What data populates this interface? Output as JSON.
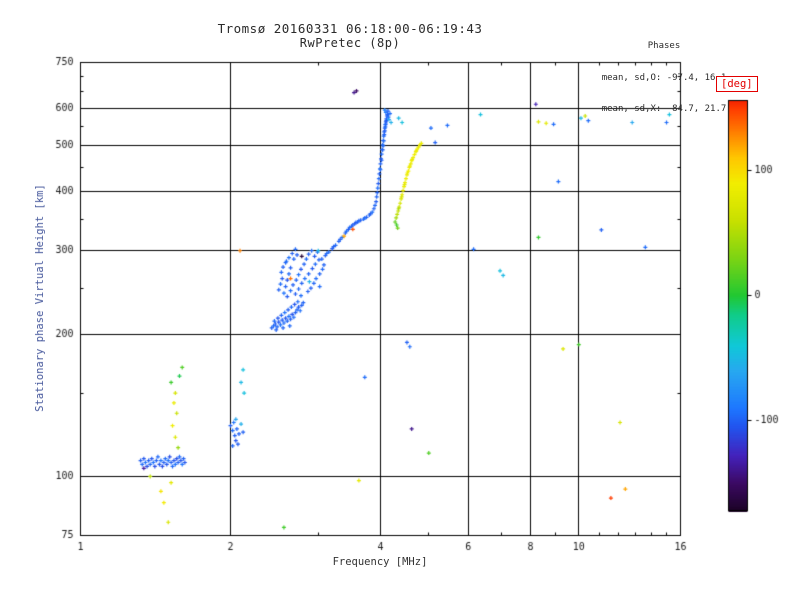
{
  "title": {
    "line1": "Tromsø 20160331 06:18:00-06:19:43",
    "line2": "RwPretec (8p)"
  },
  "stats": {
    "header": "Phases",
    "line_o": "mean, sd,O: -97.4, 16.1",
    "line_x": "mean, sd,X:  84.7, 21.7"
  },
  "axes": {
    "x": {
      "label": "Frequency [MHz]",
      "scale": "log",
      "min": 1,
      "max": 16,
      "major_ticks": [
        1,
        2,
        4,
        6,
        8,
        10,
        16
      ],
      "grid_ticks": [
        2,
        4,
        6,
        8,
        10
      ],
      "minor_ticks": [
        3,
        5,
        7,
        9,
        11,
        12,
        13,
        14,
        15
      ]
    },
    "y": {
      "label": "Stationary phase Virtual Height [km]",
      "scale": "log",
      "min": 75,
      "max": 750,
      "major_ticks": [
        75,
        100,
        200,
        300,
        400,
        500,
        600,
        750
      ],
      "grid_ticks": [
        100,
        200,
        300,
        400,
        500,
        600
      ],
      "minor_ticks": [
        150,
        250,
        350,
        450,
        550,
        650,
        700
      ]
    }
  },
  "colorbar": {
    "label": "[deg]",
    "ticks": [
      100,
      0,
      -100
    ],
    "vmin": -172,
    "vmax": 156,
    "stops": [
      [
        -180,
        "#100010"
      ],
      [
        -150,
        "#3c0a64"
      ],
      [
        -128,
        "#4422bb"
      ],
      [
        -105,
        "#2255ee"
      ],
      [
        -90,
        "#1e78ff"
      ],
      [
        -60,
        "#28a8f0"
      ],
      [
        -40,
        "#10c8d8"
      ],
      [
        -15,
        "#10cc88"
      ],
      [
        0,
        "#22c833"
      ],
      [
        30,
        "#7dd414"
      ],
      [
        60,
        "#c8e000"
      ],
      [
        90,
        "#f2ee00"
      ],
      [
        110,
        "#ffc800"
      ],
      [
        130,
        "#ff8200"
      ],
      [
        150,
        "#ff3c00"
      ],
      [
        165,
        "#e60000"
      ],
      [
        180,
        "#d40000"
      ]
    ]
  },
  "chart_data": {
    "type": "scatter",
    "title": "Tromsø 20160331 06:18:00-06:19:43 RwPretec (8p)",
    "xlabel": "Frequency [MHz]",
    "ylabel": "Stationary phase Virtual Height [km]",
    "xscale": "log",
    "yscale": "log",
    "xlim": [
      1,
      16
    ],
    "ylim": [
      75,
      750
    ],
    "grid": true,
    "color_variable": "phase [deg]",
    "point_format": [
      "frequency_MHz",
      "virtual_height_km",
      "phase_deg"
    ],
    "points": [
      [
        1.32,
        108,
        -100
      ],
      [
        1.33,
        106,
        -96
      ],
      [
        1.34,
        109,
        -104
      ],
      [
        1.35,
        107,
        -92
      ],
      [
        1.36,
        105,
        -108
      ],
      [
        1.37,
        108,
        -100
      ],
      [
        1.38,
        106,
        -96
      ],
      [
        1.39,
        109,
        -104
      ],
      [
        1.4,
        107,
        -92
      ],
      [
        1.41,
        105,
        -108
      ],
      [
        1.42,
        108,
        -100
      ],
      [
        1.43,
        110,
        -96
      ],
      [
        1.44,
        106,
        -104
      ],
      [
        1.45,
        108,
        -92
      ],
      [
        1.46,
        105,
        -108
      ],
      [
        1.47,
        107,
        -100
      ],
      [
        1.48,
        109,
        -96
      ],
      [
        1.49,
        106,
        -104
      ],
      [
        1.5,
        108,
        -92
      ],
      [
        1.51,
        110,
        -108
      ],
      [
        1.52,
        107,
        -100
      ],
      [
        1.53,
        105,
        -96
      ],
      [
        1.54,
        108,
        -104
      ],
      [
        1.55,
        106,
        -92
      ],
      [
        1.56,
        109,
        -108
      ],
      [
        1.57,
        107,
        -100
      ],
      [
        1.58,
        110,
        -96
      ],
      [
        1.59,
        108,
        -104
      ],
      [
        1.6,
        106,
        -92
      ],
      [
        1.61,
        109,
        -100
      ],
      [
        1.62,
        107,
        -104
      ],
      [
        1.34,
        104,
        -135
      ],
      [
        1.38,
        100,
        55
      ],
      [
        1.52,
        97,
        80
      ],
      [
        1.47,
        88,
        92
      ],
      [
        1.5,
        80,
        72
      ],
      [
        1.55,
        150,
        70
      ],
      [
        1.54,
        143,
        85
      ],
      [
        1.56,
        136,
        60
      ],
      [
        1.53,
        128,
        88
      ],
      [
        1.55,
        121,
        75
      ],
      [
        1.57,
        115,
        40
      ],
      [
        1.52,
        158,
        8
      ],
      [
        1.58,
        163,
        -5
      ],
      [
        1.45,
        93,
        95
      ],
      [
        1.6,
        170,
        15
      ],
      [
        2.0,
        128,
        -100
      ],
      [
        2.02,
        125,
        -95
      ],
      [
        2.04,
        122,
        -100
      ],
      [
        2.05,
        119,
        -105
      ],
      [
        2.06,
        126,
        -98
      ],
      [
        2.08,
        123,
        -100
      ],
      [
        2.03,
        130,
        -92
      ],
      [
        2.07,
        117,
        -102
      ],
      [
        2.05,
        132,
        -60
      ],
      [
        2.1,
        129,
        -55
      ],
      [
        2.12,
        124,
        -100
      ],
      [
        2.02,
        116,
        -98
      ],
      [
        2.1,
        158,
        -50
      ],
      [
        2.13,
        150,
        -45
      ],
      [
        2.12,
        168,
        -45
      ],
      [
        2.09,
        300,
        130
      ],
      [
        2.42,
        206,
        -100
      ],
      [
        2.44,
        208,
        -95
      ],
      [
        2.46,
        210,
        -102
      ],
      [
        2.48,
        207,
        -97
      ],
      [
        2.5,
        212,
        -105
      ],
      [
        2.52,
        209,
        -93
      ],
      [
        2.54,
        214,
        -100
      ],
      [
        2.56,
        211,
        -96
      ],
      [
        2.58,
        216,
        -104
      ],
      [
        2.6,
        213,
        -98
      ],
      [
        2.62,
        218,
        -92
      ],
      [
        2.64,
        215,
        -100
      ],
      [
        2.66,
        220,
        -106
      ],
      [
        2.68,
        217,
        -95
      ],
      [
        2.7,
        222,
        -100
      ],
      [
        2.72,
        225,
        -97
      ],
      [
        2.74,
        228,
        -103
      ],
      [
        2.76,
        224,
        -94
      ],
      [
        2.78,
        230,
        -100
      ],
      [
        2.8,
        233,
        -98
      ],
      [
        2.45,
        213,
        -96
      ],
      [
        2.49,
        216,
        -104
      ],
      [
        2.53,
        219,
        -99
      ],
      [
        2.57,
        222,
        -93
      ],
      [
        2.61,
        225,
        -101
      ],
      [
        2.65,
        228,
        -97
      ],
      [
        2.69,
        231,
        -105
      ],
      [
        2.73,
        234,
        -95
      ],
      [
        2.47,
        204,
        -100
      ],
      [
        2.55,
        206,
        -98
      ],
      [
        2.63,
        208,
        -96
      ],
      [
        2.5,
        248,
        -100
      ],
      [
        2.52,
        255,
        -95
      ],
      [
        2.54,
        262,
        -103
      ],
      [
        2.53,
        270,
        -97
      ],
      [
        2.56,
        244,
        -92
      ],
      [
        2.58,
        252,
        -100
      ],
      [
        2.6,
        260,
        -105
      ],
      [
        2.62,
        268,
        -96
      ],
      [
        2.64,
        276,
        -101
      ],
      [
        2.58,
        283,
        -98
      ],
      [
        2.62,
        290,
        -94
      ],
      [
        2.66,
        296,
        -100
      ],
      [
        2.7,
        302,
        -97
      ],
      [
        2.6,
        240,
        -103
      ],
      [
        2.64,
        247,
        -95
      ],
      [
        2.67,
        254,
        -100
      ],
      [
        2.71,
        260,
        -98
      ],
      [
        2.74,
        267,
        -92
      ],
      [
        2.77,
        274,
        -104
      ],
      [
        2.81,
        281,
        -99
      ],
      [
        2.84,
        288,
        -96
      ],
      [
        2.87,
        295,
        -100
      ],
      [
        2.91,
        300,
        -95
      ],
      [
        2.7,
        243,
        -102
      ],
      [
        2.74,
        249,
        -97
      ],
      [
        2.78,
        256,
        -100
      ],
      [
        2.82,
        262,
        -94
      ],
      [
        2.87,
        268,
        -98
      ],
      [
        2.92,
        275,
        -103
      ],
      [
        2.96,
        281,
        -96
      ],
      [
        3.01,
        287,
        -100
      ],
      [
        2.97,
        262,
        -95
      ],
      [
        3.02,
        268,
        -99
      ],
      [
        3.06,
        274,
        -97
      ],
      [
        2.9,
        250,
        -101
      ],
      [
        2.94,
        256,
        -98
      ],
      [
        2.77,
        241,
        -95
      ],
      [
        2.86,
        246,
        -100
      ],
      [
        3.02,
        252,
        -96
      ],
      [
        3.08,
        280,
        -99
      ],
      [
        2.95,
        292,
        -103
      ],
      [
        2.99,
        298,
        -97
      ],
      [
        2.55,
        277,
        -100
      ],
      [
        2.59,
        285,
        -95
      ],
      [
        2.68,
        288,
        -98
      ],
      [
        2.72,
        294,
        -101
      ],
      [
        2.64,
        262,
        135
      ],
      [
        2.78,
        292,
        -165
      ],
      [
        2.88,
        258,
        -55
      ],
      [
        3.0,
        300,
        -50
      ],
      [
        3.05,
        288,
        -98
      ],
      [
        3.1,
        293,
        -100
      ],
      [
        3.15,
        298,
        -95
      ],
      [
        3.2,
        303,
        -102
      ],
      [
        3.25,
        308,
        -97
      ],
      [
        3.3,
        314,
        -100
      ],
      [
        3.35,
        320,
        -94
      ],
      [
        3.4,
        327,
        -99
      ],
      [
        3.45,
        333,
        -103
      ],
      [
        3.5,
        338,
        -96
      ],
      [
        3.55,
        342,
        -100
      ],
      [
        3.6,
        345,
        -97
      ],
      [
        3.65,
        348,
        -101
      ],
      [
        3.7,
        350,
        -95
      ],
      [
        3.75,
        353,
        -100
      ],
      [
        3.8,
        357,
        -98
      ],
      [
        3.85,
        362,
        -94
      ],
      [
        3.88,
        368,
        -100
      ],
      [
        3.9,
        374,
        -97
      ],
      [
        3.92,
        381,
        -102
      ],
      [
        3.12,
        296,
        -96
      ],
      [
        3.22,
        306,
        -100
      ],
      [
        3.32,
        317,
        -98
      ],
      [
        3.42,
        330,
        -95
      ],
      [
        3.52,
        340,
        -101
      ],
      [
        3.62,
        347,
        -99
      ],
      [
        3.72,
        352,
        -96
      ],
      [
        3.82,
        359,
        -100
      ],
      [
        3.47,
        336,
        -97
      ],
      [
        3.57,
        344,
        -103
      ],
      [
        3.52,
        333,
        145
      ],
      [
        3.38,
        322,
        120
      ],
      [
        3.93,
        390,
        -98
      ],
      [
        3.94,
        398,
        -100
      ],
      [
        3.95,
        407,
        -95
      ],
      [
        3.96,
        416,
        -102
      ],
      [
        3.97,
        426,
        -97
      ],
      [
        3.98,
        436,
        -100
      ],
      [
        3.99,
        447,
        -94
      ],
      [
        4.0,
        458,
        -99
      ],
      [
        4.01,
        469,
        -103
      ],
      [
        4.02,
        480,
        -96
      ],
      [
        4.03,
        491,
        -100
      ],
      [
        4.04,
        502,
        -97
      ],
      [
        4.05,
        513,
        -101
      ],
      [
        4.06,
        524,
        -95
      ],
      [
        4.07,
        535,
        -100
      ],
      [
        4.08,
        545,
        -98
      ],
      [
        4.09,
        554,
        -94
      ],
      [
        4.1,
        562,
        -100
      ],
      [
        4.11,
        570,
        -97
      ],
      [
        4.12,
        578,
        -102
      ],
      [
        4.0,
        445,
        -96
      ],
      [
        4.02,
        466,
        -100
      ],
      [
        4.04,
        490,
        -98
      ],
      [
        4.06,
        512,
        -95
      ],
      [
        4.08,
        538,
        -101
      ],
      [
        4.1,
        556,
        -99
      ],
      [
        4.05,
        500,
        -96
      ],
      [
        4.07,
        528,
        -100
      ],
      [
        4.09,
        548,
        -97
      ],
      [
        4.11,
        565,
        -103
      ],
      [
        4.1,
        588,
        -90
      ],
      [
        4.13,
        582,
        -100
      ],
      [
        4.15,
        575,
        -95
      ],
      [
        4.08,
        595,
        -85
      ],
      [
        4.14,
        592,
        -100
      ],
      [
        4.16,
        568,
        -60
      ],
      [
        4.2,
        560,
        -55
      ],
      [
        4.18,
        585,
        -95
      ],
      [
        3.54,
        648,
        -140
      ],
      [
        3.58,
        653,
        -150
      ],
      [
        4.3,
        352,
        45
      ],
      [
        4.32,
        358,
        55
      ],
      [
        4.34,
        364,
        60
      ],
      [
        4.36,
        371,
        65
      ],
      [
        4.38,
        378,
        70
      ],
      [
        4.4,
        386,
        75
      ],
      [
        4.42,
        394,
        80
      ],
      [
        4.44,
        402,
        82
      ],
      [
        4.46,
        410,
        85
      ],
      [
        4.48,
        418,
        85
      ],
      [
        4.5,
        426,
        88
      ],
      [
        4.52,
        434,
        85
      ],
      [
        4.55,
        442,
        90
      ],
      [
        4.57,
        450,
        88
      ],
      [
        4.6,
        458,
        85
      ],
      [
        4.62,
        465,
        90
      ],
      [
        4.65,
        472,
        85
      ],
      [
        4.68,
        479,
        88
      ],
      [
        4.71,
        486,
        85
      ],
      [
        4.74,
        492,
        90
      ],
      [
        4.77,
        497,
        85
      ],
      [
        4.8,
        502,
        88
      ],
      [
        4.83,
        506,
        85
      ],
      [
        4.47,
        414,
        80
      ],
      [
        4.53,
        438,
        86
      ],
      [
        4.63,
        468,
        84
      ],
      [
        4.72,
        488,
        87
      ],
      [
        4.35,
        368,
        50
      ],
      [
        4.41,
        390,
        72
      ],
      [
        4.58,
        453,
        86
      ],
      [
        4.28,
        345,
        20
      ],
      [
        4.31,
        340,
        10
      ],
      [
        4.33,
        335,
        25
      ],
      [
        4.35,
        572,
        -50
      ],
      [
        4.42,
        560,
        -45
      ],
      [
        5.05,
        545,
        -95
      ],
      [
        5.15,
        508,
        -100
      ],
      [
        5.45,
        552,
        -95
      ],
      [
        6.35,
        582,
        -45
      ],
      [
        8.2,
        612,
        -130
      ],
      [
        8.3,
        562,
        75
      ],
      [
        8.6,
        558,
        80
      ],
      [
        8.9,
        555,
        -95
      ],
      [
        10.3,
        578,
        60
      ],
      [
        10.1,
        572,
        -50
      ],
      [
        10.45,
        565,
        -95
      ],
      [
        15.2,
        582,
        -45
      ],
      [
        15.0,
        560,
        -95
      ],
      [
        12.8,
        560,
        -60
      ],
      [
        9.1,
        420,
        -95
      ],
      [
        8.3,
        320,
        5
      ],
      [
        6.95,
        272,
        -45
      ],
      [
        7.05,
        266,
        -50
      ],
      [
        6.15,
        302,
        -95
      ],
      [
        11.1,
        332,
        -100
      ],
      [
        13.6,
        305,
        -95
      ],
      [
        10.0,
        190,
        10
      ],
      [
        9.3,
        186,
        75
      ],
      [
        4.52,
        192,
        -100
      ],
      [
        4.58,
        188,
        -95
      ],
      [
        3.72,
        162,
        -95
      ],
      [
        4.62,
        126,
        -140
      ],
      [
        5.0,
        112,
        15
      ],
      [
        3.62,
        98,
        80
      ],
      [
        12.1,
        130,
        70
      ],
      [
        12.4,
        94,
        120
      ],
      [
        11.6,
        90,
        150
      ],
      [
        2.56,
        78,
        10
      ]
    ]
  }
}
